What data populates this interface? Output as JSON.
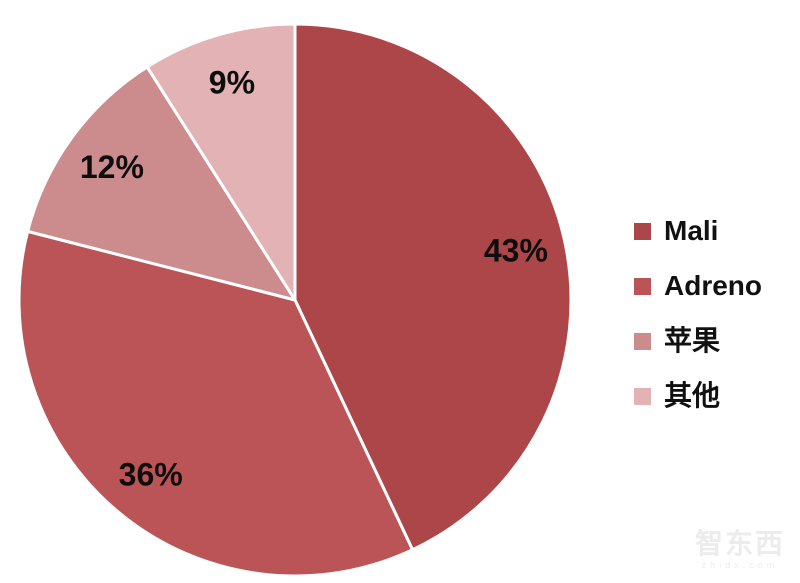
{
  "chart_data": {
    "type": "pie",
    "categories": [
      "Mali",
      "Adreno",
      "苹果",
      "其他"
    ],
    "values": [
      43,
      36,
      12,
      9
    ],
    "slice_labels": [
      "43%",
      "36%",
      "12%",
      "9%"
    ],
    "colors": [
      "#AC4649",
      "#BB5456",
      "#CC8C8E",
      "#E2B2B4"
    ],
    "title": "",
    "start_angle_deg": 0,
    "direction": "clockwise",
    "slice_border_color": "#FFFFFF",
    "label_color": "#0d0d0d",
    "legend_position": "right",
    "background": "#FFFFFF"
  },
  "legend": {
    "items": [
      {
        "label": "Mali",
        "color": "#AC4649"
      },
      {
        "label": "Adreno",
        "color": "#BB5456"
      },
      {
        "label": "苹果",
        "color": "#CC8C8E"
      },
      {
        "label": "其他",
        "color": "#E2B2B4"
      }
    ]
  },
  "watermark": {
    "brand": "智东西",
    "domain": "zhidx.com"
  }
}
